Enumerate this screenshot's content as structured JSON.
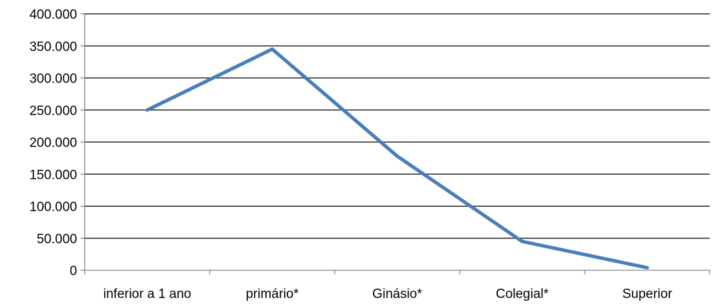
{
  "chart_data": {
    "type": "line",
    "categories": [
      "inferior a 1 ano",
      "primário*",
      "Ginásio*",
      "Colegial*",
      "Superior"
    ],
    "series": [
      {
        "values": [
          250000,
          345000,
          178000,
          45000,
          4000
        ]
      }
    ],
    "ylim": [
      0,
      400000
    ],
    "yticks": [
      0,
      50000,
      100000,
      150000,
      200000,
      250000,
      300000,
      350000,
      400000
    ],
    "ytick_labels": [
      "0",
      "50.000",
      "100.000",
      "150.000",
      "200.000",
      "250.000",
      "300.000",
      "350.000",
      "400.000"
    ],
    "grid": true,
    "legend": "none",
    "colors": {
      "line": "#4a7ebb",
      "grid": "#000000",
      "axis": "#868686"
    }
  }
}
